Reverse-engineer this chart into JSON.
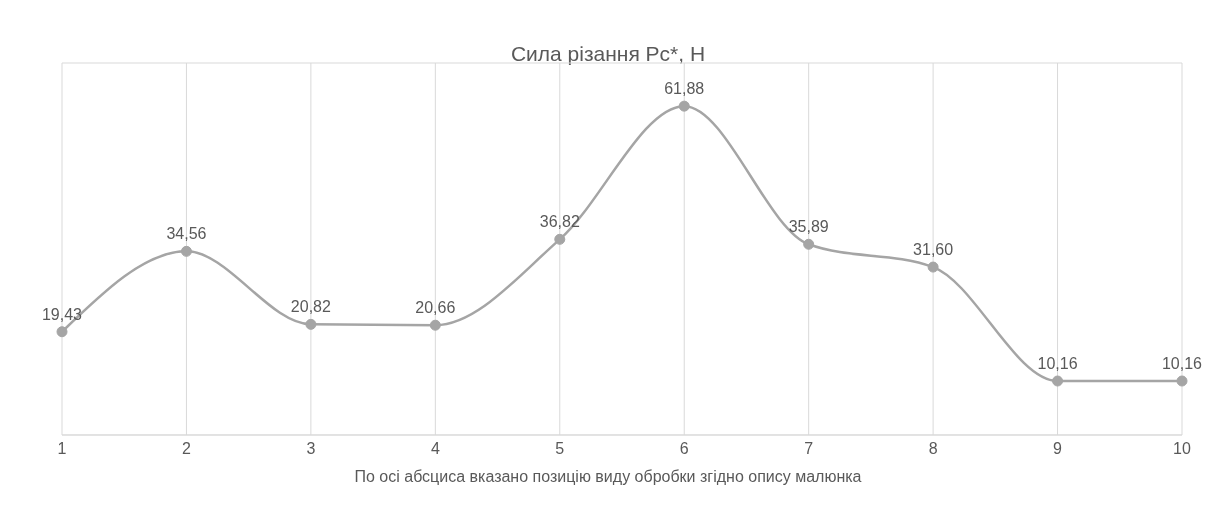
{
  "chart_data": {
    "type": "line",
    "title": "Сила різання Pc*, Н",
    "xlabel": "По осі абсциса вказано позицію виду обробки згідно опису малюнка",
    "categories": [
      "1",
      "2",
      "3",
      "4",
      "5",
      "6",
      "7",
      "8",
      "9",
      "10"
    ],
    "series": [
      {
        "color": "#a5a5a5",
        "values": [
          19.43,
          34.56,
          20.82,
          20.66,
          36.82,
          61.88,
          35.89,
          31.6,
          10.16,
          10.16
        ],
        "value_labels": [
          "19,43",
          "34,56",
          "20,82",
          "20,66",
          "36,82",
          "61,88",
          "35,89",
          "31,60",
          "10,16",
          "10,16"
        ]
      }
    ],
    "ylim": [
      0,
      70
    ],
    "tick_labels": "x",
    "grid": true,
    "legend": false,
    "marker": "circle",
    "line_style": "solid"
  }
}
